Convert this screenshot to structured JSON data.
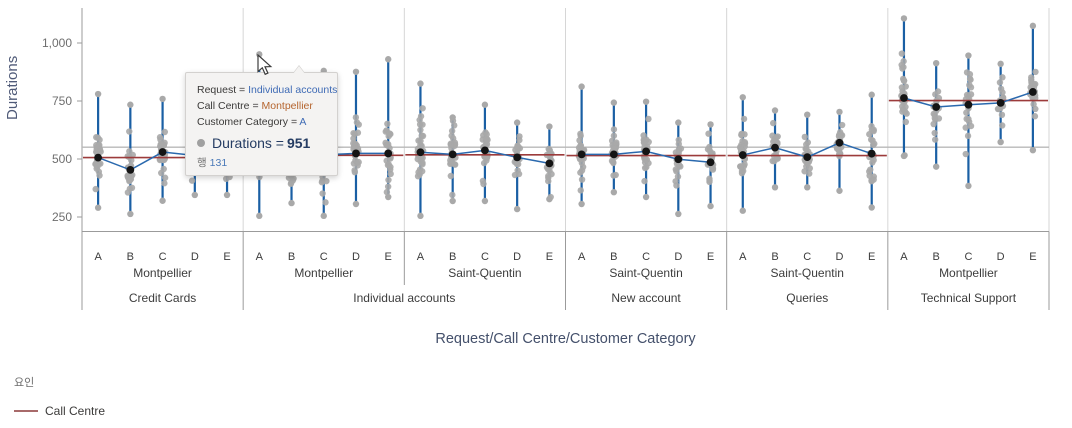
{
  "axis": {
    "y_title": "Durations",
    "x_title": "Request/Call Centre/Customer Category",
    "y_ticks": [
      {
        "value": 250,
        "label": "250"
      },
      {
        "value": 500,
        "label": "500"
      },
      {
        "value": 750,
        "label": "750"
      },
      {
        "value": 1000,
        "label": "1,000"
      }
    ]
  },
  "legend": {
    "title": "요인",
    "items": [
      {
        "label": "Call Centre",
        "color": "#a86a6a"
      }
    ]
  },
  "tooltip": {
    "lines": [
      {
        "label": "Request = ",
        "value": "Individual accounts"
      },
      {
        "label": "Call Centre = ",
        "value": "Montpellier"
      },
      {
        "label": "Customer Category = ",
        "value": "A"
      }
    ],
    "measure_label": "Durations = ",
    "measure_value": "951",
    "row_label": "행",
    "row_value": "131"
  },
  "chart_data": {
    "type": "scatter",
    "subtype": "jittered strip plot with min-max whiskers, per-category means, per-panel factor mean line and global reference line",
    "ylabel": "Durations",
    "xlabel": "Request/Call Centre/Customer Category",
    "ylim": [
      190,
      1155
    ],
    "grid": "vertical panel separators only",
    "legend_position": "bottom-left",
    "reference_line": {
      "value": 551,
      "color": "#b8b8b8"
    },
    "highlighted_point": {
      "panel_index": 1,
      "category": "A",
      "value": 951,
      "row": 131
    },
    "style": {
      "point": "#a9a9a9",
      "whisker": "#1a5fa4",
      "mean_line": "#2a69ae",
      "mean_dot": "#141414",
      "factor_line": "#9c3b3b",
      "gridline": "#d6d6d6",
      "axis_line": "#9b9b9b",
      "tick_label": "#6e6e6e",
      "category_label": "#3c3c3c"
    },
    "panels": [
      {
        "request": "Credit Cards",
        "call_centre": "Montpellier",
        "factor_line": 506,
        "categories": [
          "A",
          "B",
          "C",
          "D",
          "E"
        ],
        "strips": [
          {
            "min": 290,
            "max": 780,
            "mean": 506,
            "n": 30
          },
          {
            "min": 263,
            "max": 734,
            "mean": 453,
            "n": 26
          },
          {
            "min": 320,
            "max": 759,
            "mean": 530,
            "n": 30
          },
          {
            "min": 345,
            "max": 745,
            "mean": 515,
            "n": 26
          },
          {
            "min": 345,
            "max": 755,
            "mean": 522,
            "n": 26
          }
        ]
      },
      {
        "request": "Individual accounts",
        "call_centre": "Montpellier",
        "factor_line": 516,
        "categories": [
          "A",
          "B",
          "C",
          "D",
          "E"
        ],
        "strips": [
          {
            "min": 255,
            "max": 951,
            "mean": 515,
            "n": 30
          },
          {
            "min": 310,
            "max": 730,
            "mean": 502,
            "n": 26
          },
          {
            "min": 255,
            "max": 880,
            "mean": 518,
            "n": 28
          },
          {
            "min": 306,
            "max": 876,
            "mean": 524,
            "n": 28
          },
          {
            "min": 336,
            "max": 930,
            "mean": 524,
            "n": 26
          }
        ]
      },
      {
        "request": "Individual accounts",
        "call_centre": "Saint-Quentin",
        "factor_line": 518,
        "categories": [
          "A",
          "B",
          "C",
          "D",
          "E"
        ],
        "strips": [
          {
            "min": 255,
            "max": 825,
            "mean": 529,
            "n": 34
          },
          {
            "min": 319,
            "max": 679,
            "mean": 520,
            "n": 26
          },
          {
            "min": 319,
            "max": 734,
            "mean": 537,
            "n": 30
          },
          {
            "min": 284,
            "max": 657,
            "mean": 507,
            "n": 24
          },
          {
            "min": 327,
            "max": 640,
            "mean": 481,
            "n": 24
          }
        ]
      },
      {
        "request": "New account",
        "call_centre": "Saint-Quentin",
        "factor_line": 515,
        "categories": [
          "A",
          "B",
          "C",
          "D",
          "E"
        ],
        "strips": [
          {
            "min": 306,
            "max": 812,
            "mean": 520,
            "n": 32
          },
          {
            "min": 357,
            "max": 743,
            "mean": 520,
            "n": 28
          },
          {
            "min": 336,
            "max": 747,
            "mean": 533,
            "n": 30
          },
          {
            "min": 263,
            "max": 657,
            "mean": 499,
            "n": 24
          },
          {
            "min": 297,
            "max": 649,
            "mean": 486,
            "n": 24
          }
        ]
      },
      {
        "request": "Queries",
        "call_centre": "Saint-Quentin",
        "factor_line": 515,
        "categories": [
          "A",
          "B",
          "C",
          "D",
          "E"
        ],
        "strips": [
          {
            "min": 277,
            "max": 766,
            "mean": 517,
            "n": 32
          },
          {
            "min": 378,
            "max": 709,
            "mean": 549,
            "n": 24
          },
          {
            "min": 378,
            "max": 691,
            "mean": 508,
            "n": 26
          },
          {
            "min": 363,
            "max": 703,
            "mean": 570,
            "n": 22
          },
          {
            "min": 291,
            "max": 777,
            "mean": 523,
            "n": 26
          }
        ]
      },
      {
        "request": "Technical Support",
        "call_centre": "Montpellier",
        "factor_line": 752,
        "categories": [
          "A",
          "B",
          "C",
          "D",
          "E"
        ],
        "strips": [
          {
            "min": 513,
            "max": 1106,
            "mean": 763,
            "n": 30
          },
          {
            "min": 467,
            "max": 913,
            "mean": 724,
            "n": 22
          },
          {
            "min": 384,
            "max": 946,
            "mean": 734,
            "n": 24
          },
          {
            "min": 573,
            "max": 910,
            "mean": 742,
            "n": 20
          },
          {
            "min": 538,
            "max": 1074,
            "mean": 789,
            "n": 24
          }
        ]
      }
    ]
  }
}
